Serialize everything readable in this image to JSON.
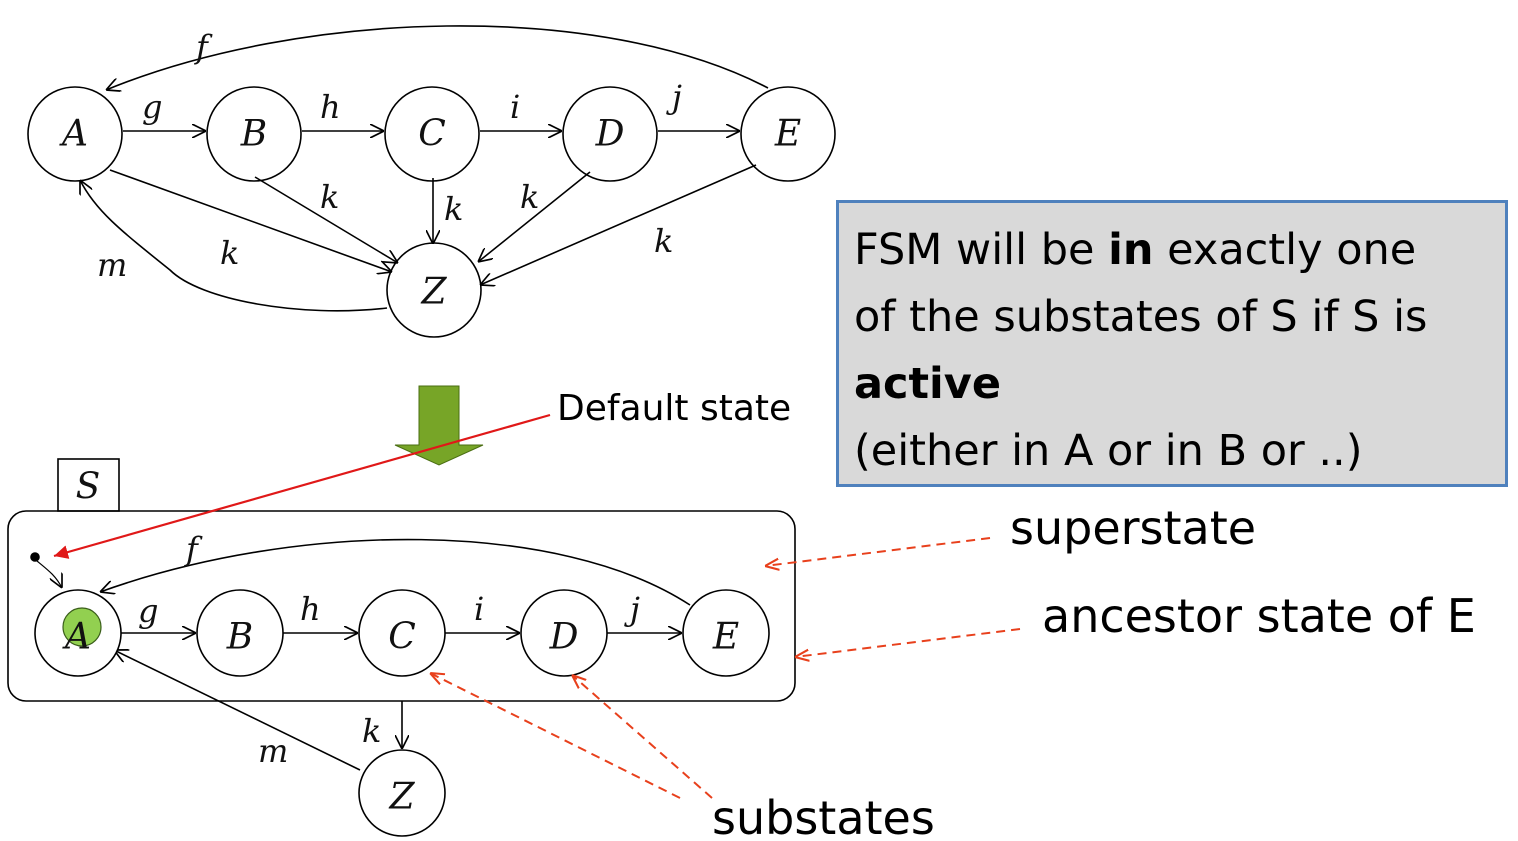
{
  "top_diagram": {
    "states": [
      "A",
      "B",
      "C",
      "D",
      "E",
      "Z"
    ],
    "labels": {
      "g": "g",
      "h": "h",
      "i": "i",
      "j": "j",
      "f": "f",
      "k": "k",
      "m": "m"
    }
  },
  "bottom_diagram": {
    "superstate_name": "S",
    "states": [
      "A",
      "B",
      "C",
      "D",
      "E",
      "Z"
    ],
    "labels": {
      "g": "g",
      "h": "h",
      "i": "i",
      "j": "j",
      "f": "f",
      "k": "k",
      "m": "m"
    }
  },
  "annotations": {
    "default_state": "Default state",
    "superstate": "superstate",
    "ancestor": "ancestor state of E",
    "substates": "substates"
  },
  "info_box": {
    "line1_pre": "FSM will be ",
    "line1_bold": "in",
    "line1_post": " exactly one",
    "line2": "of the substates of S if S is",
    "line3_bold": "active",
    "line4": "(either in A or in B or ..)"
  },
  "colors": {
    "arrow_green": "#77a527",
    "annotation_red": "#e8401c",
    "default_red": "#e01818",
    "active_fill": "#92d050",
    "box_border": "#4f81bd",
    "box_fill": "#d9d9d9"
  }
}
